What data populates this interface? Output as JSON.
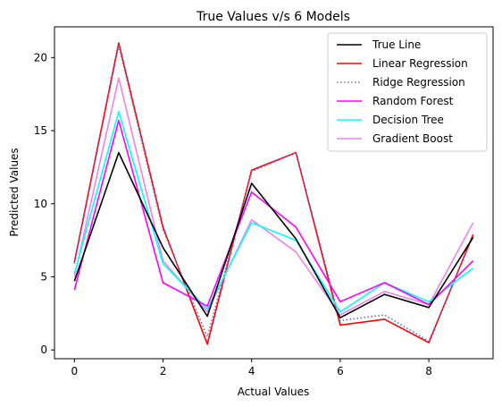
{
  "chart_data": {
    "type": "line",
    "title": "True Values v/s 6 Models",
    "xlabel": "Actual Values",
    "ylabel": "Predicted Values",
    "xlim": [
      -0.45,
      9.45
    ],
    "ylim": [
      -0.6,
      22.1
    ],
    "xticks": [
      0,
      2,
      4,
      6,
      8
    ],
    "yticks": [
      0,
      5,
      10,
      15,
      20
    ],
    "legend_position": "top-right",
    "grid": false,
    "x": [
      0,
      1,
      2,
      3,
      4,
      5,
      6,
      7,
      8,
      9
    ],
    "series": [
      {
        "name": "Linear Regression",
        "color": "#ff0000",
        "dash": "solid",
        "values": [
          6.0,
          21.0,
          8.4,
          0.4,
          12.3,
          13.5,
          1.7,
          2.1,
          0.5,
          7.9
        ]
      },
      {
        "name": "Ridge Regression",
        "color": "#6a6ad4",
        "dash": "dotted",
        "values": [
          5.9,
          20.8,
          8.2,
          0.9,
          12.2,
          13.5,
          2.0,
          2.4,
          0.6,
          7.8
        ]
      },
      {
        "name": "Gradient Boost",
        "color": "#ee82ee",
        "dash": "solid",
        "values": [
          5.0,
          18.6,
          6.1,
          2.6,
          8.9,
          6.7,
          2.4,
          4.0,
          3.1,
          8.7
        ]
      },
      {
        "name": "Decision Tree",
        "color": "#00ffff",
        "dash": "solid",
        "values": [
          5.2,
          16.3,
          5.9,
          2.8,
          8.7,
          7.5,
          2.6,
          4.6,
          3.3,
          5.6
        ]
      },
      {
        "name": "Random Forest",
        "color": "#ff00ff",
        "dash": "solid",
        "values": [
          4.1,
          15.7,
          4.6,
          3.0,
          10.8,
          8.4,
          3.3,
          4.6,
          3.1,
          6.1
        ]
      },
      {
        "name": "True Line",
        "color": "#000000",
        "dash": "solid",
        "values": [
          4.7,
          13.5,
          7.0,
          2.3,
          11.4,
          7.6,
          2.2,
          3.8,
          2.9,
          7.7
        ]
      }
    ],
    "legend_order": [
      "True Line",
      "Linear Regression",
      "Ridge Regression",
      "Random Forest",
      "Decision Tree",
      "Gradient Boost"
    ]
  }
}
